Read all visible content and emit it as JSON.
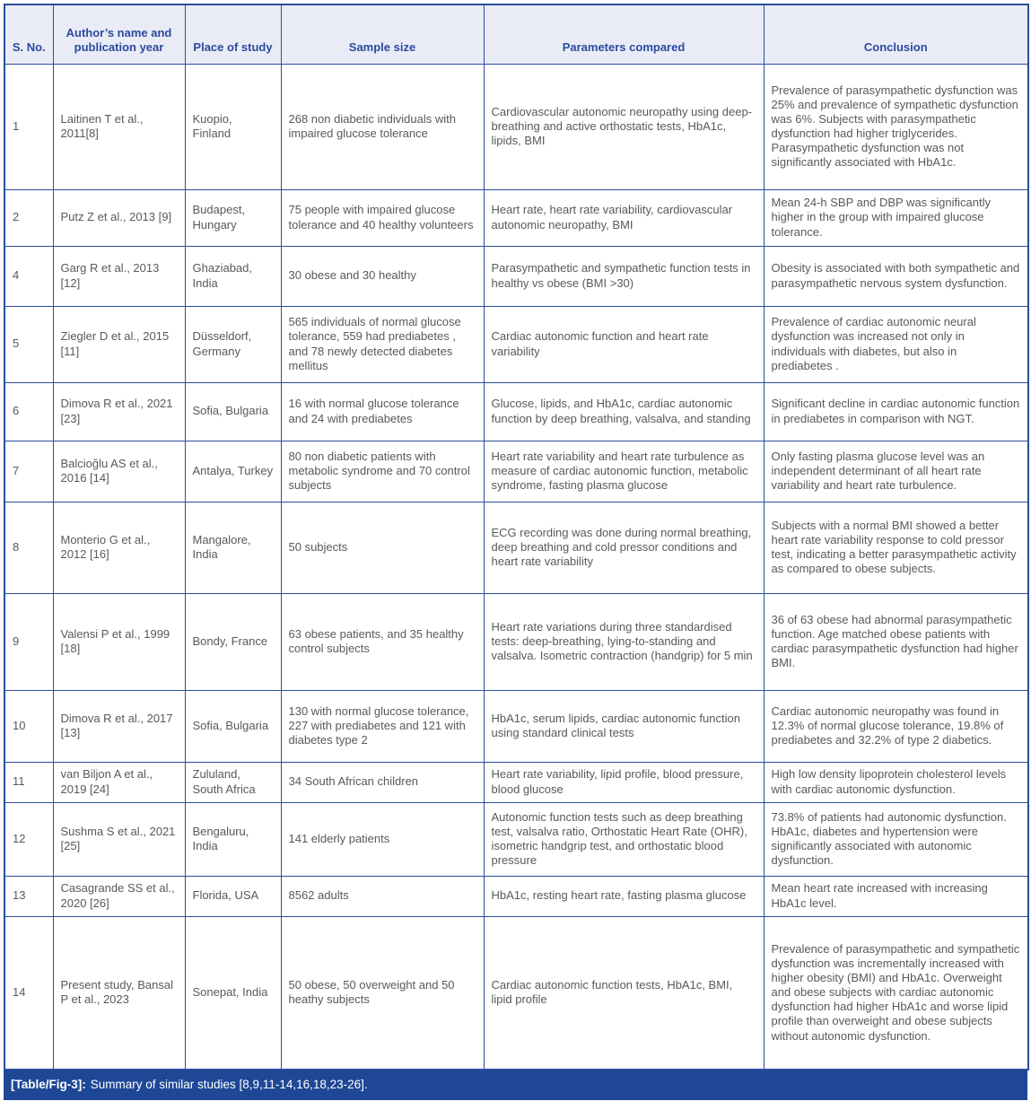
{
  "colors": {
    "table_border": "#2a4d9e",
    "header_background": "#e9ecf6",
    "header_text": "#2b4a9e",
    "body_text": "#58595b",
    "caption_background": "#1e4796",
    "caption_text": "#ffffff"
  },
  "table": {
    "columns": [
      "S. No.",
      "Author’s name and publication year",
      "Place of study",
      "Sample size",
      "Parameters compared",
      "Conclusion"
    ],
    "rows": [
      {
        "sno": "1",
        "author": "Laitinen T et al., 2011[8]",
        "place": "Kuopio, Finland",
        "sample": "268 non diabetic individuals with impaired glucose tolerance",
        "parameters": "Cardiovascular autonomic neuropathy using deep-breathing and active orthostatic tests, HbA1c, lipids, BMI",
        "conclusion": "Prevalence of parasympathetic dysfunction was 25% and prevalence of sympathetic dysfunction was 6%. Subjects with parasympathetic dysfunction had higher triglycerides. Parasympathetic dysfunction was not significantly associated with HbA1c."
      },
      {
        "sno": "2",
        "author": "Putz Z et al., 2013 [9]",
        "place": "Budapest, Hungary",
        "sample": "75 people with impaired glucose tolerance and 40 healthy volunteers",
        "parameters": "Heart rate, heart rate variability, cardiovascular autonomic neuropathy, BMI",
        "conclusion": "Mean 24-h SBP and DBP was significantly higher in the group with impaired glucose tolerance."
      },
      {
        "sno": "4",
        "author": "Garg R et al., 2013 [12]",
        "place": "Ghaziabad, India",
        "sample": "30 obese and 30 healthy",
        "parameters": "Parasympathetic and sympathetic function tests in healthy vs obese (BMI >30)",
        "conclusion": "Obesity is associated with both sympathetic and parasympathetic nervous system dysfunction."
      },
      {
        "sno": "5",
        "author": "Ziegler D et al., 2015 [11]",
        "place": "Düsseldorf, Germany",
        "sample": "565 individuals of normal glucose tolerance, 559 had prediabetes , and 78 newly detected diabetes mellitus",
        "parameters": "Cardiac autonomic function and heart rate variability",
        "conclusion": "Prevalence of cardiac autonomic neural dysfunction was increased not only in individuals with diabetes, but also in prediabetes ."
      },
      {
        "sno": "6",
        "author": "Dimova R et al., 2021 [23]",
        "place": "Sofia, Bulgaria",
        "sample": "16 with normal glucose tolerance and 24 with prediabetes",
        "parameters": "Glucose, lipids, and HbA1c, cardiac autonomic function by deep breathing, valsalva, and standing",
        "conclusion": "Significant decline in cardiac autonomic function in prediabetes in comparison with NGT."
      },
      {
        "sno": "7",
        "author": "Balcioğlu AS et al., 2016 [14]",
        "place": "Antalya, Turkey",
        "sample": "80 non diabetic patients with metabolic syndrome and 70 control subjects",
        "parameters": "Heart rate variability and heart rate turbulence as measure of cardiac autonomic function, metabolic syndrome, fasting plasma glucose",
        "conclusion": "Only fasting plasma glucose level was an independent determinant of all heart rate variability and heart rate turbulence."
      },
      {
        "sno": "8",
        "author": "Monterio G et al., 2012 [16]",
        "place": "Mangalore, India",
        "sample": "50 subjects",
        "parameters": "ECG recording was done during normal breathing, deep breathing and cold pressor conditions and heart rate variability",
        "conclusion": "Subjects with a normal BMI showed a better heart rate variability response to cold pressor test, indicating a better parasympathetic activity as compared to obese subjects."
      },
      {
        "sno": "9",
        "author": "Valensi P et al., 1999 [18]",
        "place": "Bondy, France",
        "sample": "63 obese patients, and 35 healthy control subjects",
        "parameters": "Heart rate variations during three standardised tests: deep-breathing, lying-to-standing and valsalva. Isometric contraction (handgrip) for 5 min",
        "conclusion": "36 of 63 obese had abnormal parasympathetic function. Age matched obese patients with cardiac parasympathetic dysfunction had higher BMI."
      },
      {
        "sno": "10",
        "author": "Dimova R et al., 2017 [13]",
        "place": "Sofia, Bulgaria",
        "sample": "130 with normal glucose tolerance, 227 with prediabetes and 121 with diabetes type 2",
        "parameters": "HbA1c, serum lipids, cardiac autonomic function using standard clinical tests",
        "conclusion": "Cardiac autonomic neuropathy was found in 12.3% of normal glucose tolerance, 19.8% of prediabetes and 32.2% of type 2 diabetics."
      },
      {
        "sno": "11",
        "author": "van Biljon A et al., 2019 [24]",
        "place": "Zululand, South Africa",
        "sample": "34 South African children",
        "parameters": "Heart rate variability, lipid profile, blood pressure, blood glucose",
        "conclusion": "High low density lipoprotein cholesterol levels with cardiac autonomic dysfunction."
      },
      {
        "sno": "12",
        "author": "Sushma S et al., 2021 [25]",
        "place": "Bengaluru, India",
        "sample": "141 elderly patients",
        "parameters": "Autonomic function tests such as deep breathing test, valsalva ratio, Orthostatic Heart Rate (OHR), isometric handgrip test, and orthostatic blood pressure",
        "conclusion": "73.8% of patients had autonomic dysfunction. HbA1c, diabetes and hypertension were significantly associated with autonomic dysfunction."
      },
      {
        "sno": "13",
        "author": "Casagrande SS et al., 2020 [26]",
        "place": "Florida, USA",
        "sample": "8562 adults",
        "parameters": "HbA1c, resting heart rate, fasting plasma glucose",
        "conclusion": "Mean heart rate increased with increasing HbA1c level."
      },
      {
        "sno": "14",
        "author": "Present study, Bansal P et al., 2023",
        "place": "Sonepat, India",
        "sample": "50 obese, 50 overweight and 50 heathy subjects",
        "parameters": "Cardiac autonomic function tests, HbA1c, BMI, lipid profile",
        "conclusion": "Prevalence of parasympathetic and sympathetic dysfunction was incrementally increased with higher obesity (BMI) and HbA1c. Overweight and obese subjects with cardiac autonomic dysfunction had higher HbA1c and worse lipid profile than overweight and obese subjects without autonomic dysfunction."
      }
    ]
  },
  "caption": {
    "label": "[Table/Fig-3]:",
    "text": "Summary of similar studies [8,9,11-14,16,18,23-26]."
  }
}
